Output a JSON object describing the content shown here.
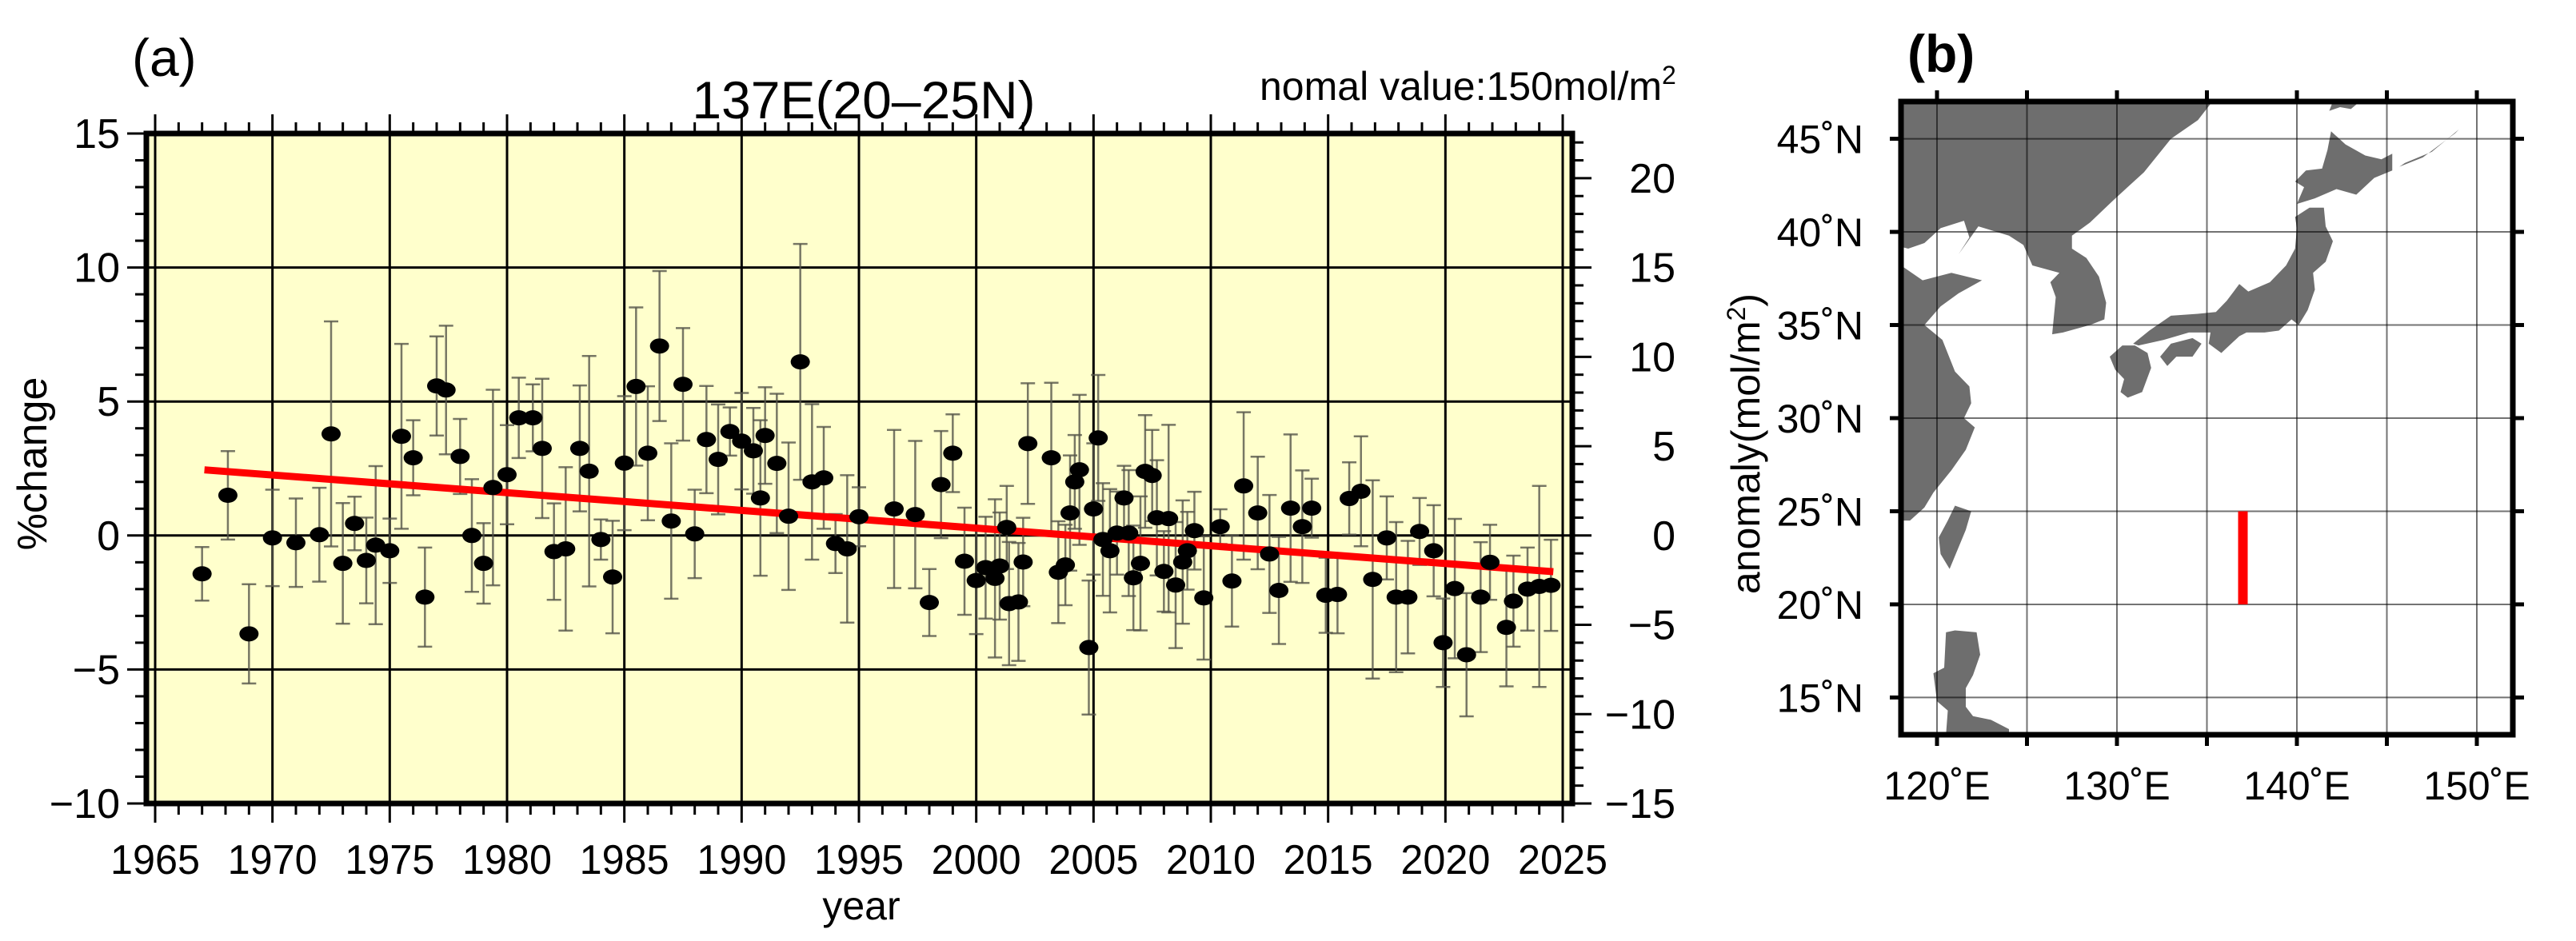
{
  "panel_a": {
    "label": "(a)",
    "title": "137E(20–25N)",
    "note": "nomal value:150mol/m",
    "note_sup": "2",
    "xlabel": "year",
    "ylabel_left": "%change",
    "ylabel_right": "anomaly(mol/m",
    "ylabel_right_sup": "2",
    "ylabel_right_close": ")"
  },
  "panel_b": {
    "label": "(b)",
    "lat_labels": [
      "15˚N",
      "20˚N",
      "25˚N",
      "30˚N",
      "35˚N",
      "40˚N",
      "45˚N"
    ],
    "lon_labels": [
      "120˚E",
      "130˚E",
      "140˚E",
      "150˚E"
    ]
  },
  "colors": {
    "plot_background": "#FFFFCC",
    "points": "#000000",
    "error_bars": "#55554a",
    "trend_line": "#FF0000",
    "land": "#6e6e6e",
    "section_line": "#FF0000"
  },
  "chart_data": [
    {
      "type": "scatter",
      "title": "137E(20–25N)",
      "subtitle": "nomal value:150mol/m²",
      "xlabel": "year",
      "ylabel": "%change",
      "ylabel_right": "anomaly(mol/m²)",
      "xlim": [
        1964,
        2026
      ],
      "ylim": [
        -10,
        15
      ],
      "ylim_right": [
        -15,
        22.5
      ],
      "xticks": [
        1965,
        1970,
        1975,
        1980,
        1985,
        1990,
        1995,
        2000,
        2005,
        2010,
        2015,
        2020,
        2025
      ],
      "yticks": [
        -10,
        -5,
        0,
        5,
        10,
        15
      ],
      "yticks_right": [
        -15,
        -10,
        -5,
        0,
        5,
        10,
        15,
        20
      ],
      "grid": true,
      "normal_value_mol_m2": 150,
      "points": [
        {
          "x": 1967.0,
          "y": -1.43,
          "err": 1.0
        },
        {
          "x": 1968.1,
          "y": 1.5,
          "err": 1.65
        },
        {
          "x": 1969.0,
          "y": -3.67,
          "err": 1.85
        },
        {
          "x": 1970.0,
          "y": -0.09,
          "err": 1.8
        },
        {
          "x": 1971.0,
          "y": -0.27,
          "err": 1.65
        },
        {
          "x": 1972.0,
          "y": 0.03,
          "err": 1.75
        },
        {
          "x": 1972.5,
          "y": 3.79,
          "err": 4.2
        },
        {
          "x": 1973.0,
          "y": -1.04,
          "err": 2.25
        },
        {
          "x": 1973.5,
          "y": 0.45,
          "err": 1.0
        },
        {
          "x": 1974.0,
          "y": -0.93,
          "err": 1.6
        },
        {
          "x": 1974.4,
          "y": -0.36,
          "err": 2.95
        },
        {
          "x": 1975.0,
          "y": -0.57,
          "err": 1.2
        },
        {
          "x": 1975.5,
          "y": 3.7,
          "err": 3.45
        },
        {
          "x": 1976.0,
          "y": 2.9,
          "err": 1.4
        },
        {
          "x": 1976.5,
          "y": -2.3,
          "err": 1.85
        },
        {
          "x": 1977.0,
          "y": 5.58,
          "err": 1.85
        },
        {
          "x": 1977.4,
          "y": 5.43,
          "err": 2.4
        },
        {
          "x": 1978.0,
          "y": 2.95,
          "err": 1.4
        },
        {
          "x": 1978.5,
          "y": 0.0,
          "err": 2.1
        },
        {
          "x": 1979.0,
          "y": -1.04,
          "err": 1.5
        },
        {
          "x": 1979.4,
          "y": 1.79,
          "err": 3.65
        },
        {
          "x": 1980.0,
          "y": 2.27,
          "err": 1.85
        },
        {
          "x": 1980.5,
          "y": 4.39,
          "err": 1.5
        },
        {
          "x": 1981.1,
          "y": 4.39,
          "err": 1.25
        },
        {
          "x": 1981.5,
          "y": 3.25,
          "err": 2.6
        },
        {
          "x": 1982.0,
          "y": -0.6,
          "err": 1.8
        },
        {
          "x": 1982.5,
          "y": -0.5,
          "err": 3.05
        },
        {
          "x": 1983.1,
          "y": 3.25,
          "err": 2.35
        },
        {
          "x": 1983.5,
          "y": 2.4,
          "err": 4.3
        },
        {
          "x": 1984.0,
          "y": -0.15,
          "err": 0.75
        },
        {
          "x": 1984.5,
          "y": -1.55,
          "err": 2.1
        },
        {
          "x": 1985.0,
          "y": 2.7,
          "err": 2.5
        },
        {
          "x": 1985.5,
          "y": 5.56,
          "err": 2.95
        },
        {
          "x": 1986.0,
          "y": 3.07,
          "err": 2.5
        },
        {
          "x": 1986.5,
          "y": 7.07,
          "err": 2.8
        },
        {
          "x": 1987.0,
          "y": 0.54,
          "err": 2.9
        },
        {
          "x": 1987.5,
          "y": 5.64,
          "err": 2.1
        },
        {
          "x": 1988.0,
          "y": 0.06,
          "err": 1.65
        },
        {
          "x": 1988.5,
          "y": 3.58,
          "err": 2.0
        },
        {
          "x": 1989.0,
          "y": 2.84,
          "err": 2.05
        },
        {
          "x": 1989.5,
          "y": 3.88,
          "err": 0.9
        },
        {
          "x": 1990.0,
          "y": 3.52,
          "err": 1.8
        },
        {
          "x": 1990.5,
          "y": 3.16,
          "err": 1.6
        },
        {
          "x": 1990.8,
          "y": 1.4,
          "err": 2.9
        },
        {
          "x": 1991.0,
          "y": 3.73,
          "err": 1.8
        },
        {
          "x": 1991.5,
          "y": 2.69,
          "err": 2.6
        },
        {
          "x": 1992.0,
          "y": 0.72,
          "err": 2.75
        },
        {
          "x": 1992.5,
          "y": 6.48,
          "err": 4.4
        },
        {
          "x": 1993.0,
          "y": 2.0,
          "err": 2.9
        },
        {
          "x": 1993.5,
          "y": 2.15,
          "err": 1.9
        },
        {
          "x": 1994.0,
          "y": -0.3,
          "err": 1.1
        },
        {
          "x": 1994.5,
          "y": -0.5,
          "err": 2.75
        },
        {
          "x": 1995.0,
          "y": 0.7,
          "err": 1.1
        },
        {
          "x": 1996.5,
          "y": 0.99,
          "err": 2.95
        },
        {
          "x": 1997.4,
          "y": 0.78,
          "err": 2.75
        },
        {
          "x": 1998.0,
          "y": -2.5,
          "err": 1.25
        },
        {
          "x": 1998.5,
          "y": 1.9,
          "err": 2.0
        },
        {
          "x": 1999.0,
          "y": 3.07,
          "err": 1.45
        },
        {
          "x": 1999.5,
          "y": -0.96,
          "err": 2.0
        },
        {
          "x": 2000.0,
          "y": -1.68,
          "err": 2.0
        },
        {
          "x": 2000.4,
          "y": -1.2,
          "err": 1.9
        },
        {
          "x": 2000.8,
          "y": -1.6,
          "err": 2.95
        },
        {
          "x": 2001.0,
          "y": -1.14,
          "err": 2.0
        },
        {
          "x": 2001.3,
          "y": 0.3,
          "err": 1.55
        },
        {
          "x": 2001.4,
          "y": -2.54,
          "err": 2.3
        },
        {
          "x": 2001.8,
          "y": -2.48,
          "err": 2.2
        },
        {
          "x": 2002.0,
          "y": -0.99,
          "err": 1.65
        },
        {
          "x": 2002.2,
          "y": 3.43,
          "err": 2.25
        },
        {
          "x": 2003.2,
          "y": 2.9,
          "err": 2.8
        },
        {
          "x": 2003.5,
          "y": -1.37,
          "err": 1.9
        },
        {
          "x": 2003.8,
          "y": -1.1,
          "err": 1.5
        },
        {
          "x": 2004.0,
          "y": 0.84,
          "err": 2.15
        },
        {
          "x": 2004.2,
          "y": 2.0,
          "err": 1.75
        },
        {
          "x": 2004.4,
          "y": 2.45,
          "err": 2.8
        },
        {
          "x": 2004.8,
          "y": -4.18,
          "err": 2.5
        },
        {
          "x": 2005.0,
          "y": 0.99,
          "err": 2.45
        },
        {
          "x": 2005.2,
          "y": 3.64,
          "err": 2.35
        },
        {
          "x": 2005.4,
          "y": -0.15,
          "err": 2.1
        },
        {
          "x": 2005.7,
          "y": -0.57,
          "err": 2.3
        },
        {
          "x": 2006.0,
          "y": 0.09,
          "err": 1.55
        },
        {
          "x": 2006.3,
          "y": 1.4,
          "err": 1.2
        },
        {
          "x": 2006.5,
          "y": 0.09,
          "err": 2.35
        },
        {
          "x": 2006.7,
          "y": -1.58,
          "err": 1.95
        },
        {
          "x": 2007.0,
          "y": -1.04,
          "err": 2.5
        },
        {
          "x": 2007.2,
          "y": 2.39,
          "err": 2.1
        },
        {
          "x": 2007.5,
          "y": 2.24,
          "err": 1.7
        },
        {
          "x": 2007.7,
          "y": 0.66,
          "err": 2.15
        },
        {
          "x": 2008.0,
          "y": -1.34,
          "err": 1.5
        },
        {
          "x": 2008.2,
          "y": 0.63,
          "err": 3.5
        },
        {
          "x": 2008.5,
          "y": -1.85,
          "err": 2.35
        },
        {
          "x": 2008.8,
          "y": -0.99,
          "err": 2.3
        },
        {
          "x": 2009.0,
          "y": -0.57,
          "err": 1.45
        },
        {
          "x": 2009.3,
          "y": 0.18,
          "err": 1.45
        },
        {
          "x": 2009.7,
          "y": -2.33,
          "err": 2.3
        },
        {
          "x": 2010.4,
          "y": 0.33,
          "err": 0.65
        },
        {
          "x": 2010.9,
          "y": -1.7,
          "err": 1.7
        },
        {
          "x": 2011.4,
          "y": 1.85,
          "err": 2.75
        },
        {
          "x": 2012.0,
          "y": 0.84,
          "err": 2.1
        },
        {
          "x": 2012.5,
          "y": -0.69,
          "err": 2.2
        },
        {
          "x": 2012.9,
          "y": -2.05,
          "err": 2.0
        },
        {
          "x": 2013.4,
          "y": 1.02,
          "err": 2.75
        },
        {
          "x": 2013.9,
          "y": 0.33,
          "err": 2.1
        },
        {
          "x": 2014.3,
          "y": 1.02,
          "err": 1.1
        },
        {
          "x": 2014.9,
          "y": -2.23,
          "err": 1.4
        },
        {
          "x": 2015.4,
          "y": -2.2,
          "err": 1.45
        },
        {
          "x": 2015.9,
          "y": 1.38,
          "err": 1.35
        },
        {
          "x": 2016.4,
          "y": 1.65,
          "err": 2.05
        },
        {
          "x": 2016.9,
          "y": -1.64,
          "err": 3.7
        },
        {
          "x": 2017.5,
          "y": -0.09,
          "err": 1.55
        },
        {
          "x": 2017.9,
          "y": -2.3,
          "err": 2.8
        },
        {
          "x": 2018.4,
          "y": -2.3,
          "err": 2.1
        },
        {
          "x": 2018.9,
          "y": 0.15,
          "err": 1.25
        },
        {
          "x": 2019.5,
          "y": -0.57,
          "err": 1.7
        },
        {
          "x": 2019.9,
          "y": -4.0,
          "err": 1.65
        },
        {
          "x": 2020.4,
          "y": -1.98,
          "err": 2.6
        },
        {
          "x": 2020.9,
          "y": -4.45,
          "err": 2.3
        },
        {
          "x": 2021.5,
          "y": -2.3,
          "err": 2.05
        },
        {
          "x": 2021.9,
          "y": -1.0,
          "err": 1.4
        },
        {
          "x": 2022.6,
          "y": -3.43,
          "err": 2.2
        },
        {
          "x": 2022.9,
          "y": -2.45,
          "err": 1.7
        },
        {
          "x": 2023.5,
          "y": -2.0,
          "err": 1.55
        },
        {
          "x": 2024.0,
          "y": -1.9,
          "err": 3.75
        },
        {
          "x": 2024.5,
          "y": -1.86,
          "err": 1.7
        }
      ],
      "trend": {
        "x": [
          1967.1,
          2024.6
        ],
        "y": [
          2.45,
          -1.35
        ]
      }
    },
    {
      "type": "map",
      "lon_range": [
        118,
        152
      ],
      "lat_range": [
        13,
        47
      ],
      "lon_ticks": [
        120,
        130,
        140,
        150
      ],
      "lon_minor": [
        125,
        135,
        145
      ],
      "lat_ticks": [
        15,
        20,
        25,
        30,
        35,
        40,
        45
      ],
      "section": {
        "lon": 137,
        "lat_from": 20,
        "lat_to": 25
      }
    }
  ]
}
